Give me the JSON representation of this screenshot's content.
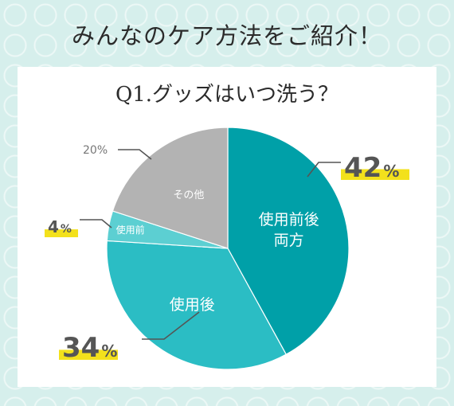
{
  "header": {
    "title": "みんなのケア方法をご紹介！"
  },
  "chart_data": {
    "type": "pie",
    "title": "Q1.グッズはいつ洗う？",
    "slices": [
      {
        "label": "使用前後\n両方",
        "value": 42,
        "value_text": "42",
        "color": "#00a0a8"
      },
      {
        "label": "使用後",
        "value": 34,
        "value_text": "34",
        "color": "#2bbdc4"
      },
      {
        "label": "使用前",
        "value": 4,
        "value_text": "4",
        "color": "#5ccfd2"
      },
      {
        "label": "その他",
        "value": 20,
        "value_text": "20%",
        "color": "#b3b3b3"
      }
    ],
    "unit": "%",
    "highlight_color": "#f3e11c",
    "leader_color": "#555555"
  }
}
